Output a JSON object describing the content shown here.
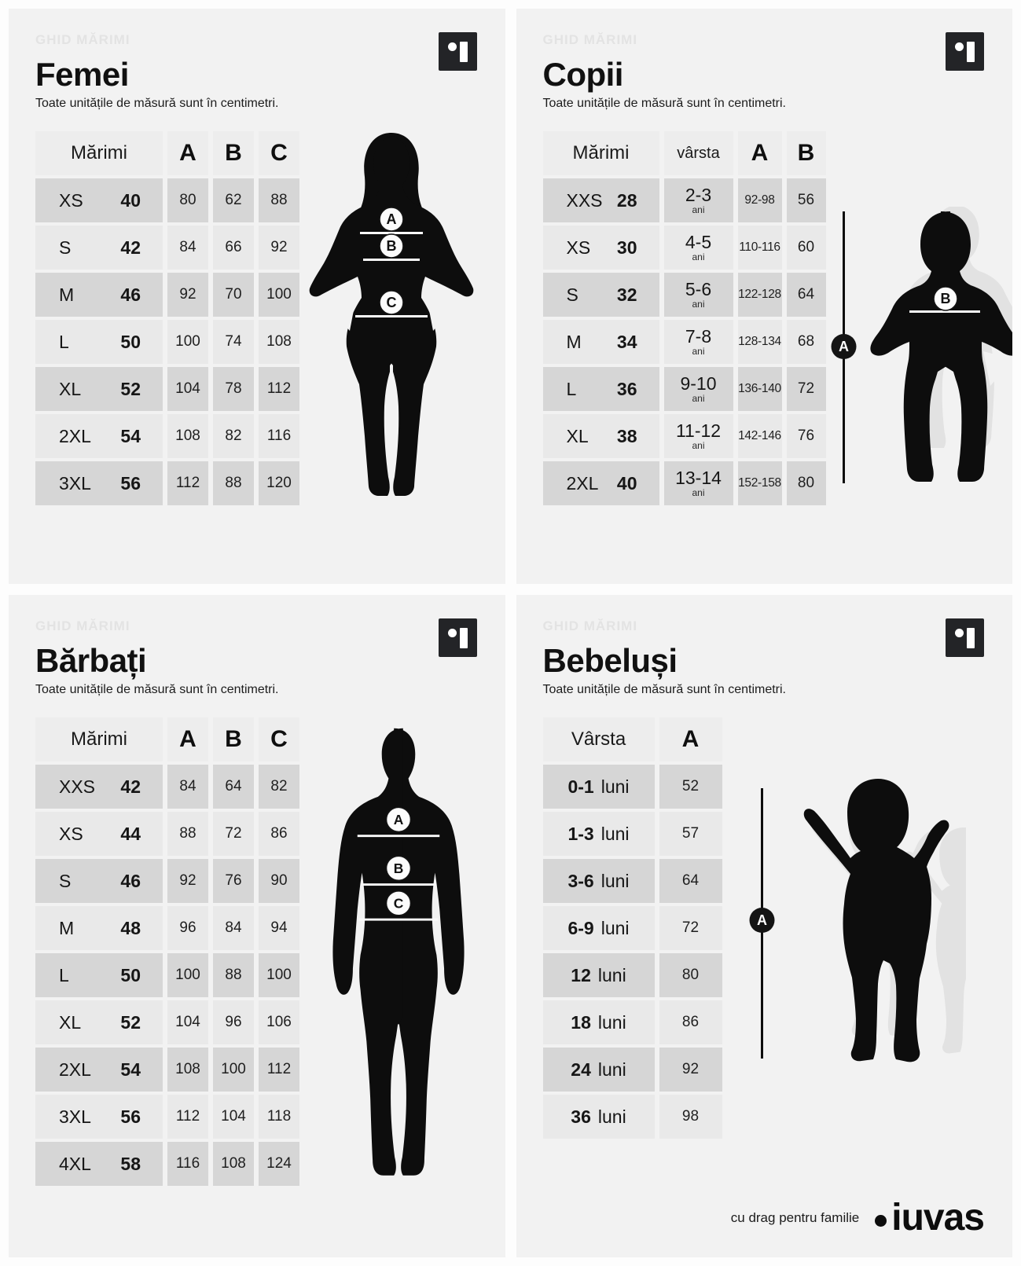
{
  "colors": {
    "panel_bg": "#f2f2f2",
    "row_dark": "#d6d6d6",
    "row_light": "#e9e9e9",
    "header_row": "#ededed",
    "silhouette": "#0d0d0d",
    "faint_silhouette": "#e2e2e2",
    "logo_box": "#232427",
    "eyebrow_text": "#e3e3e3"
  },
  "footer": {
    "tagline": "cu drag pentru familie",
    "brand": "iuvas"
  },
  "sections": [
    {
      "id": "femei",
      "kind": "wabc",
      "eyebrow": "GHID MĂRIMI",
      "title": "Femei",
      "subtitle": "Toate unitățile de măsură sunt în centimetri.",
      "table": {
        "headers": [
          "Mărimi",
          "A",
          "B",
          "C"
        ],
        "rows": [
          {
            "size": "XS",
            "num": "40",
            "values": [
              "80",
              "62",
              "88"
            ]
          },
          {
            "size": "S",
            "num": "42",
            "values": [
              "84",
              "66",
              "92"
            ]
          },
          {
            "size": "M",
            "num": "46",
            "values": [
              "92",
              "70",
              "100"
            ]
          },
          {
            "size": "L",
            "num": "50",
            "values": [
              "100",
              "74",
              "108"
            ]
          },
          {
            "size": "XL",
            "num": "52",
            "values": [
              "104",
              "78",
              "112"
            ]
          },
          {
            "size": "2XL",
            "num": "54",
            "values": [
              "108",
              "82",
              "116"
            ]
          },
          {
            "size": "3XL",
            "num": "56",
            "values": [
              "112",
              "88",
              "120"
            ]
          }
        ]
      },
      "figure": {
        "markers": [
          "A",
          "B",
          "C"
        ]
      }
    },
    {
      "id": "copii",
      "kind": "kids",
      "eyebrow": "GHID MĂRIMI",
      "title": "Copii",
      "subtitle": "Toate unitățile de măsură sunt în centimetri.",
      "table": {
        "headers": [
          "Mărimi",
          "vârsta",
          "A",
          "B"
        ],
        "age_unit": "ani",
        "rows": [
          {
            "size": "XXS",
            "num": "28",
            "age": "2-3",
            "values": [
              "92-98",
              "56"
            ]
          },
          {
            "size": "XS",
            "num": "30",
            "age": "4-5",
            "values": [
              "110-116",
              "60"
            ]
          },
          {
            "size": "S",
            "num": "32",
            "age": "5-6",
            "values": [
              "122-128",
              "64"
            ]
          },
          {
            "size": "M",
            "num": "34",
            "age": "7-8",
            "values": [
              "128-134",
              "68"
            ]
          },
          {
            "size": "L",
            "num": "36",
            "age": "9-10",
            "values": [
              "136-140",
              "72"
            ]
          },
          {
            "size": "XL",
            "num": "38",
            "age": "11-12",
            "values": [
              "142-146",
              "76"
            ]
          },
          {
            "size": "2XL",
            "num": "40",
            "age": "13-14",
            "values": [
              "152-158",
              "80"
            ]
          }
        ]
      },
      "figure": {
        "markers": [
          "A",
          "B"
        ]
      }
    },
    {
      "id": "barbati",
      "kind": "wabc",
      "eyebrow": "GHID MĂRIMI",
      "title": "Bărbați",
      "subtitle": "Toate unitățile de măsură sunt în centimetri.",
      "table": {
        "headers": [
          "Mărimi",
          "A",
          "B",
          "C"
        ],
        "rows": [
          {
            "size": "XXS",
            "num": "42",
            "values": [
              "84",
              "64",
              "82"
            ]
          },
          {
            "size": "XS",
            "num": "44",
            "values": [
              "88",
              "72",
              "86"
            ]
          },
          {
            "size": "S",
            "num": "46",
            "values": [
              "92",
              "76",
              "90"
            ]
          },
          {
            "size": "M",
            "num": "48",
            "values": [
              "96",
              "84",
              "94"
            ]
          },
          {
            "size": "L",
            "num": "50",
            "values": [
              "100",
              "88",
              "100"
            ]
          },
          {
            "size": "XL",
            "num": "52",
            "values": [
              "104",
              "96",
              "106"
            ]
          },
          {
            "size": "2XL",
            "num": "54",
            "values": [
              "108",
              "100",
              "112"
            ]
          },
          {
            "size": "3XL",
            "num": "56",
            "values": [
              "112",
              "104",
              "118"
            ]
          },
          {
            "size": "4XL",
            "num": "58",
            "values": [
              "116",
              "108",
              "124"
            ]
          }
        ]
      },
      "figure": {
        "markers": [
          "A",
          "B",
          "C"
        ]
      }
    },
    {
      "id": "bebelusi",
      "kind": "baby",
      "eyebrow": "GHID MĂRIMI",
      "title": "Bebeluși",
      "subtitle": "Toate unitățile de măsură sunt în centimetri.",
      "table": {
        "headers": [
          "Vârsta",
          "A"
        ],
        "rows": [
          {
            "age": "0-1",
            "unit": "luni",
            "value": "52"
          },
          {
            "age": "1-3",
            "unit": "luni",
            "value": "57"
          },
          {
            "age": "3-6",
            "unit": "luni",
            "value": "64"
          },
          {
            "age": "6-9",
            "unit": "luni",
            "value": "72"
          },
          {
            "age": "12",
            "unit": "luni",
            "value": "80"
          },
          {
            "age": "18",
            "unit": "luni",
            "value": "86"
          },
          {
            "age": "24",
            "unit": "luni",
            "value": "92"
          },
          {
            "age": "36",
            "unit": "luni",
            "value": "98"
          }
        ]
      },
      "figure": {
        "markers": [
          "A"
        ]
      }
    }
  ]
}
